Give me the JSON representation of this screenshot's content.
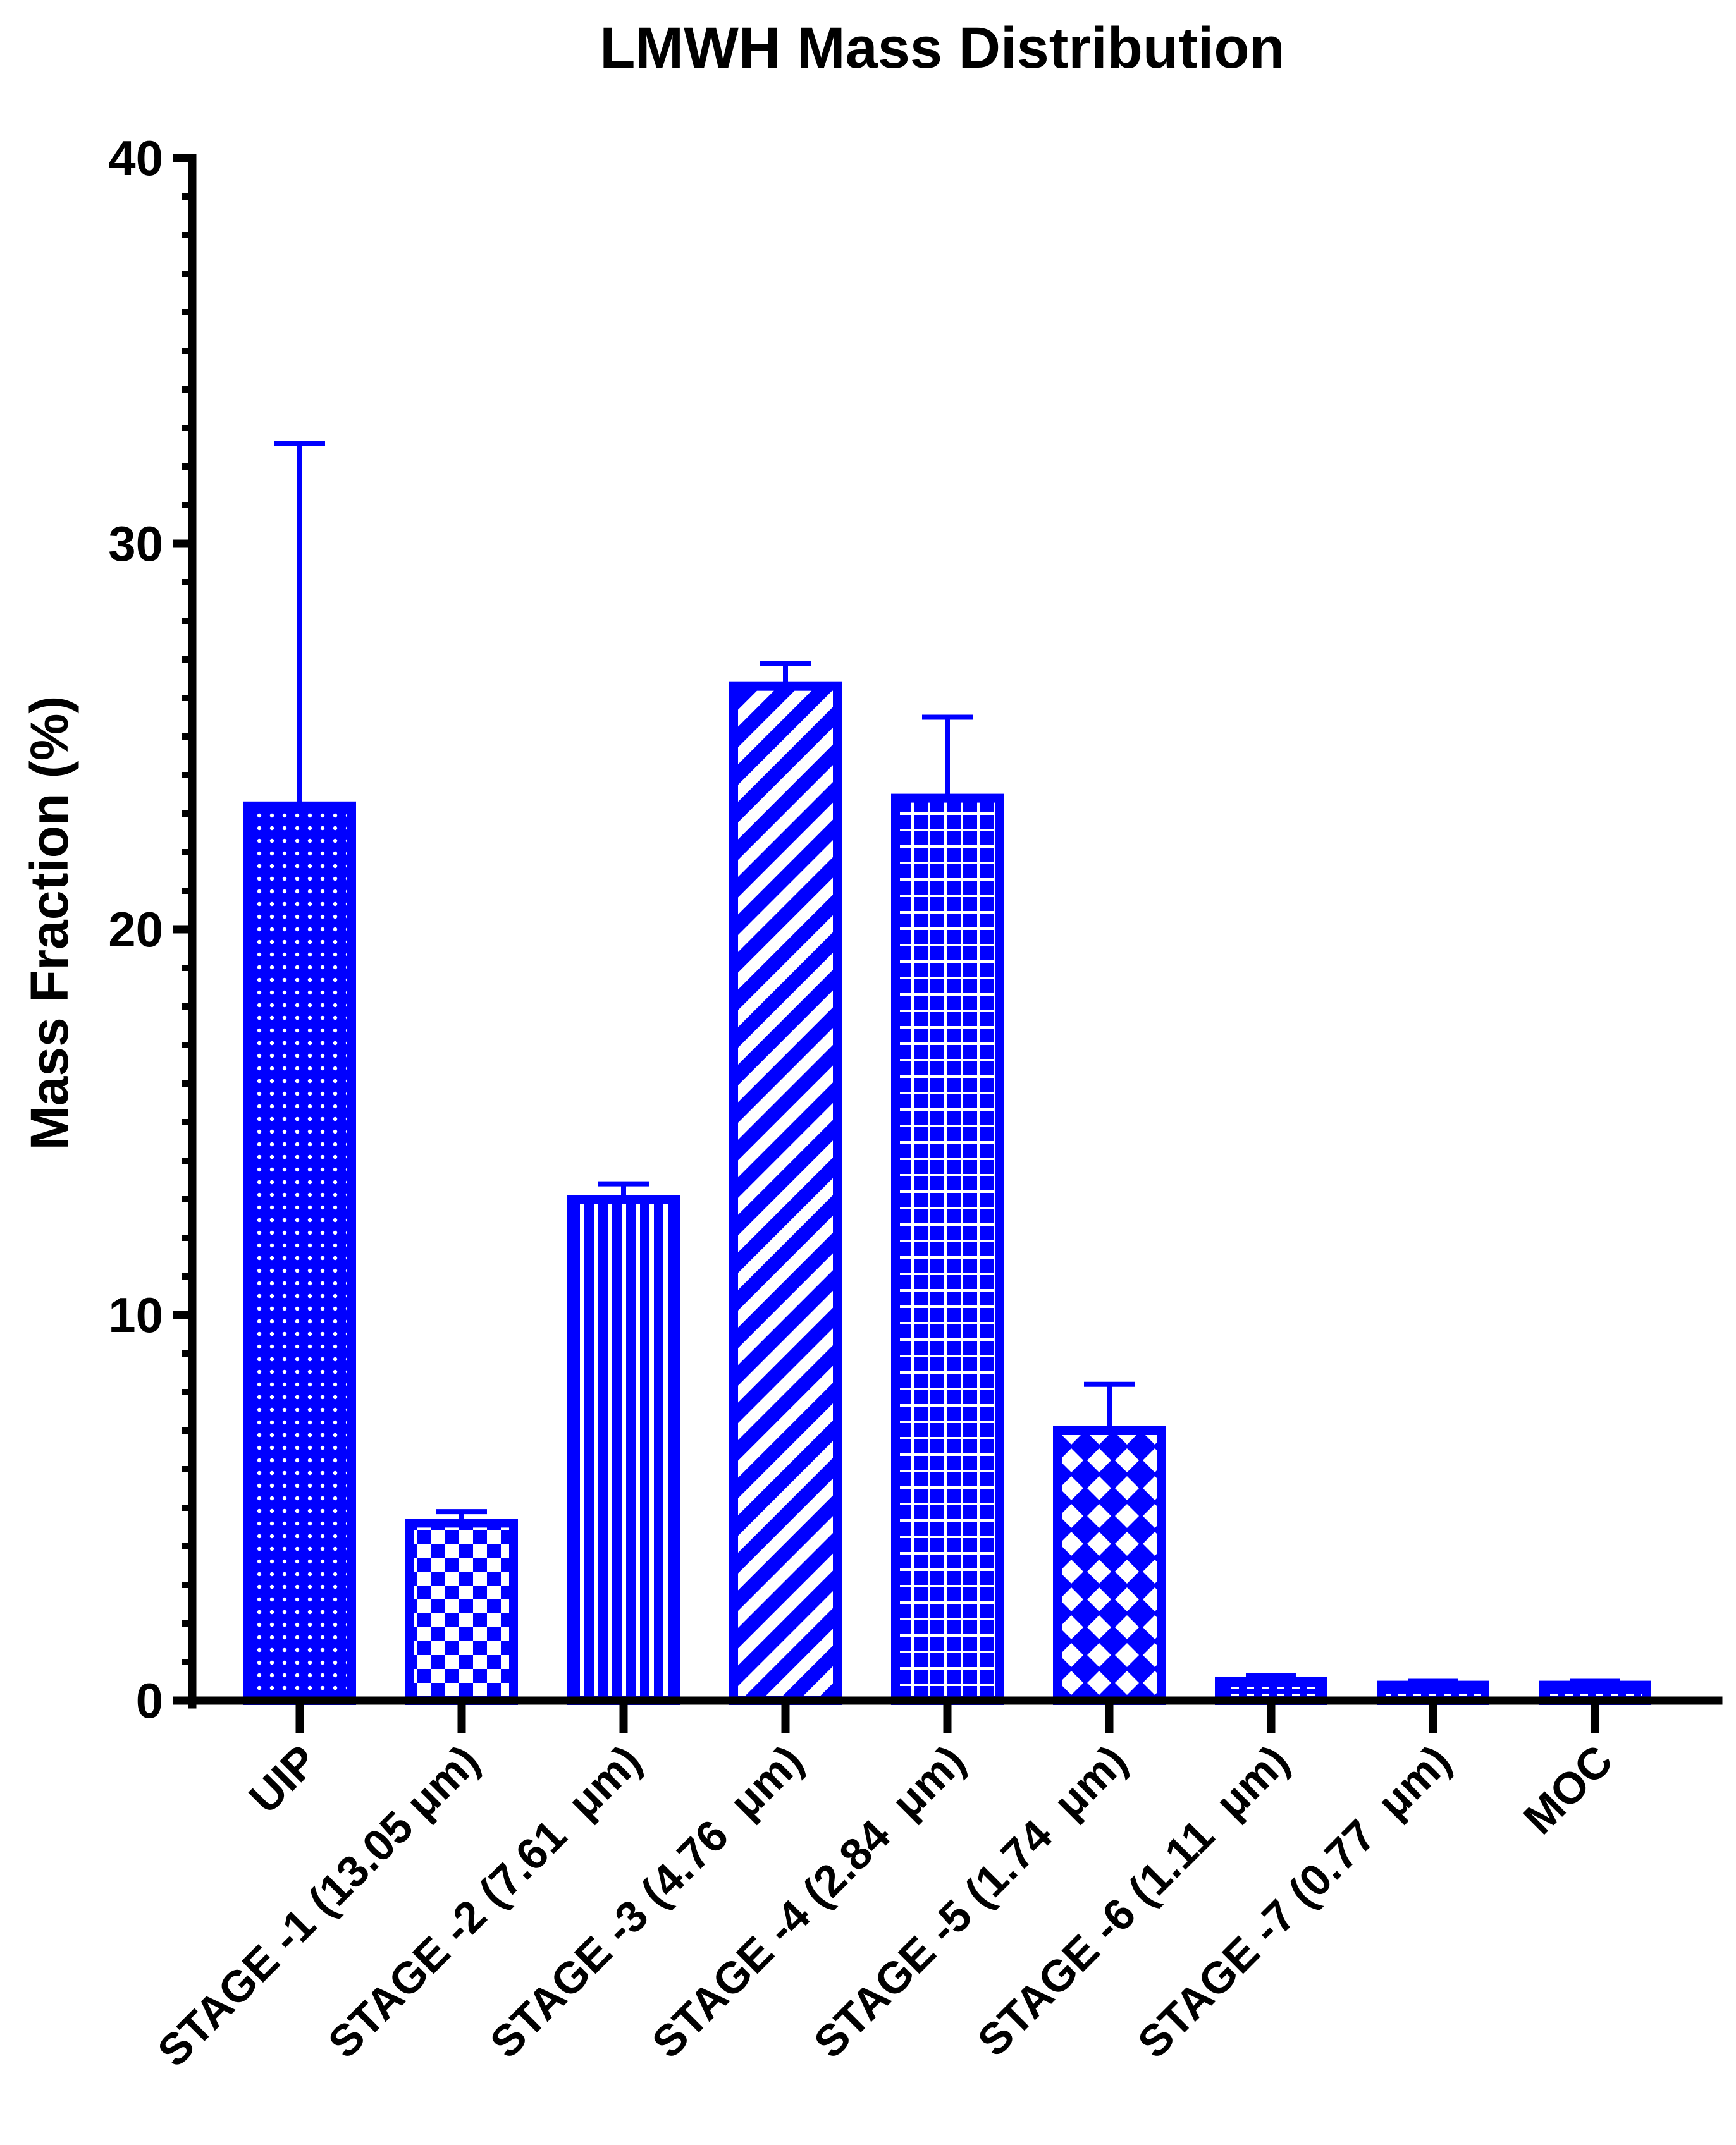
{
  "chart_data": {
    "type": "bar",
    "title": "LMWH Mass Distribution",
    "ylabel": "Mass Fraction (%)",
    "xlabel": "",
    "ylim": [
      0,
      40
    ],
    "y_ticks": [
      "0",
      "10",
      "20",
      "30",
      "40"
    ],
    "y_minor_step": 1,
    "grid": false,
    "categories": [
      "UIP",
      "STAGE -1 (13.05 μm)",
      "STAGE -2 (7.61  μm)",
      "STAGE -3 (4.76  μm)",
      "STAGE -4 (2.84  μm)",
      "STAGE -5 (1.74  μm)",
      "STAGE -6 (1.11  μm)",
      "STAGE -7 (0.77  μm)",
      "MOC"
    ],
    "values": [
      23.2,
      4.6,
      13.0,
      26.3,
      23.4,
      7.0,
      0.5,
      0.4,
      0.4
    ],
    "error": [
      9.4,
      0.3,
      0.4,
      0.6,
      2.1,
      1.2,
      0.15,
      0.1,
      0.1
    ],
    "patterns": [
      "dots",
      "checker",
      "vertical-lines",
      "diagonal-lines",
      "grid",
      "diamonds",
      "dashes",
      "dashes",
      "dashes"
    ],
    "colors": {
      "bar": "#0000ff",
      "axis": "#000000"
    }
  }
}
